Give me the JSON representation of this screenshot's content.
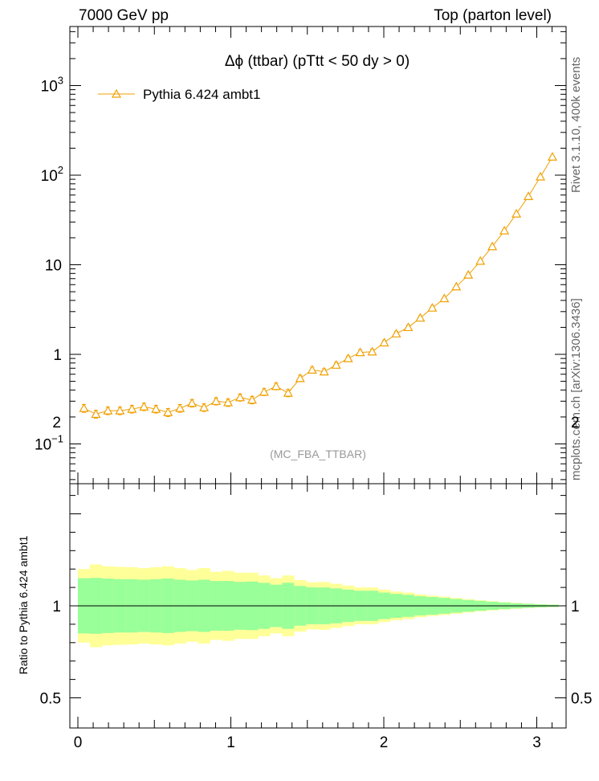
{
  "header": {
    "left": "7000 GeV pp",
    "right": "Top (parton level)"
  },
  "side_labels": {
    "upper": "Rivet 3.1.10, 400k events",
    "lower": "mcplots.cern.ch [arXiv:1306.3436]"
  },
  "analysis_tag": "(MC_FBA_TTBAR)",
  "colors": {
    "series": "#f0a000",
    "band_inner": "#99ff99",
    "band_outer": "#ffff99"
  },
  "chart_data": [
    {
      "type": "line",
      "title": "Δϕ (ttbar) (pTtt < 50 dy > 0)",
      "xlim": [
        -0.03,
        3.2
      ],
      "ylim": [
        0.04,
        4000
      ],
      "yscale": "log",
      "yticks": [
        {
          "value": 0.1,
          "base": "10",
          "exp": "−1"
        },
        {
          "value": 1,
          "base": "1",
          "exp": ""
        },
        {
          "value": 10,
          "base": "10",
          "exp": ""
        },
        {
          "value": 100,
          "base": "10",
          "exp": "2"
        },
        {
          "value": 1000,
          "base": "10",
          "exp": "3"
        }
      ],
      "legend": "top-left",
      "series": [
        {
          "name": "Pythia 6.424 ambt1",
          "marker": "open-triangle",
          "x": [
            0.0393,
            0.1178,
            0.1963,
            0.2749,
            0.3534,
            0.432,
            0.5105,
            0.589,
            0.6676,
            0.7461,
            0.8247,
            0.9032,
            0.9817,
            1.0603,
            1.1388,
            1.2174,
            1.2959,
            1.3744,
            1.453,
            1.5315,
            1.6101,
            1.6886,
            1.7671,
            1.8457,
            1.9242,
            2.0028,
            2.0813,
            2.1598,
            2.2384,
            2.3169,
            2.3955,
            2.474,
            2.5525,
            2.6311,
            2.7096,
            2.7882,
            2.8667,
            2.9452,
            3.0238,
            3.1023
          ],
          "y": [
            0.25,
            0.215,
            0.235,
            0.235,
            0.245,
            0.26,
            0.245,
            0.225,
            0.25,
            0.285,
            0.255,
            0.3,
            0.29,
            0.33,
            0.31,
            0.38,
            0.44,
            0.37,
            0.54,
            0.67,
            0.64,
            0.76,
            0.9,
            1.05,
            1.07,
            1.35,
            1.7,
            2.0,
            2.55,
            3.3,
            4.2,
            5.7,
            7.7,
            11.0,
            16.0,
            24.0,
            37.0,
            58.0,
            96.0,
            160.0
          ],
          "yerr": [
            0.025,
            0.022,
            0.023,
            0.023,
            0.024,
            0.025,
            0.024,
            0.023,
            0.025,
            0.027,
            0.025,
            0.028,
            0.028,
            0.03,
            0.03,
            0.034,
            0.038,
            0.034,
            0.045,
            0.05,
            0.05,
            0.056,
            0.06,
            0.07,
            0.07,
            0.08,
            0.1,
            0.11,
            0.13,
            0.16,
            0.19,
            0.24,
            0.3,
            0.4,
            0.55,
            0.75,
            1.1,
            1.6,
            2.5,
            4.0
          ]
        }
      ]
    },
    {
      "type": "area",
      "ylabel": "Ratio to Pythia 6.424 ambt1",
      "xlim": [
        -0.03,
        3.2
      ],
      "ylim": [
        0.4,
        2.4
      ],
      "xticks": [
        0,
        1,
        2,
        3
      ],
      "yticks": [
        0.5,
        1,
        2
      ],
      "ytick_labels": [
        "0.5",
        "1",
        "2"
      ],
      "reference_line": 1,
      "bands": {
        "x_edges": [
          0,
          0.0785,
          0.157,
          0.2356,
          0.3141,
          0.3927,
          0.4712,
          0.5497,
          0.6283,
          0.7068,
          0.7854,
          0.8639,
          0.9424,
          1.021,
          1.0995,
          1.1781,
          1.2566,
          1.3351,
          1.4137,
          1.4922,
          1.5708,
          1.6493,
          1.7278,
          1.8064,
          1.8849,
          1.9635,
          2.042,
          2.1205,
          2.1991,
          2.2776,
          2.3562,
          2.4347,
          2.5132,
          2.5918,
          2.6703,
          2.7489,
          2.8274,
          2.9059,
          2.9845,
          3.063,
          3.1416
        ],
        "inner_half_width": [
          0.15,
          0.152,
          0.148,
          0.145,
          0.145,
          0.142,
          0.145,
          0.148,
          0.142,
          0.138,
          0.142,
          0.135,
          0.135,
          0.13,
          0.132,
          0.125,
          0.115,
          0.125,
          0.108,
          0.1,
          0.1,
          0.095,
          0.088,
          0.082,
          0.082,
          0.072,
          0.065,
          0.06,
          0.052,
          0.048,
          0.043,
          0.037,
          0.032,
          0.027,
          0.022,
          0.018,
          0.014,
          0.011,
          0.008,
          0.006
        ],
        "outer_half_width": [
          0.2,
          0.225,
          0.215,
          0.212,
          0.21,
          0.205,
          0.21,
          0.215,
          0.205,
          0.195,
          0.205,
          0.185,
          0.19,
          0.18,
          0.18,
          0.165,
          0.15,
          0.165,
          0.14,
          0.128,
          0.13,
          0.12,
          0.11,
          0.1,
          0.1,
          0.088,
          0.078,
          0.072,
          0.062,
          0.055,
          0.05,
          0.043,
          0.036,
          0.03,
          0.025,
          0.02,
          0.016,
          0.012,
          0.009,
          0.007
        ]
      }
    }
  ]
}
